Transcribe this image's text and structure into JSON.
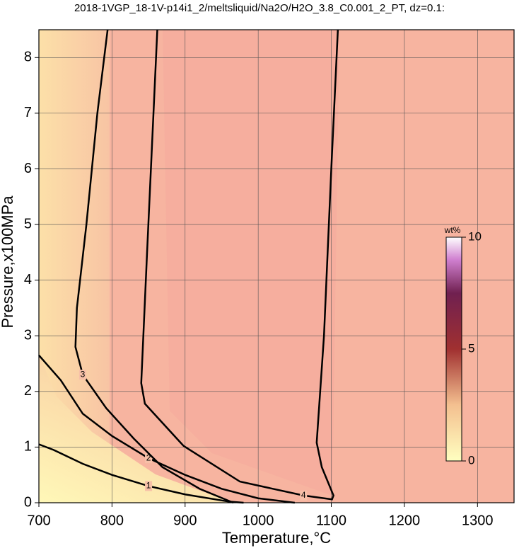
{
  "chart_data": {
    "type": "contour",
    "title": "2018-1VGP_18-1V-p14i1_2/meltsliquid/Na2O/H2O_3.8_C0.001_2_PT, dz=0.1:",
    "x_label": "Temperature,°C",
    "y_label": "Pressure,x100MPa",
    "xlim": [
      700,
      1350
    ],
    "ylim": [
      0,
      8.5
    ],
    "xticks": [
      700,
      800,
      900,
      1000,
      1100,
      1200,
      1300
    ],
    "yticks": [
      0,
      1,
      2,
      3,
      4,
      5,
      6,
      7,
      8
    ],
    "grid": true,
    "colorbar": {
      "label": "wt%",
      "lim": [
        0,
        10
      ],
      "ticks": [
        0,
        5,
        10
      ]
    },
    "contours": [
      {
        "level": 1,
        "x": [
          700,
          720,
          760,
          800,
          850,
          900,
          960,
          980
        ],
        "y": [
          1.05,
          0.95,
          0.7,
          0.5,
          0.3,
          0.15,
          0.02,
          0
        ]
      },
      {
        "level": 2,
        "x": [
          700,
          730,
          760,
          800,
          850,
          900,
          950,
          1000,
          1050
        ],
        "y": [
          2.65,
          2.2,
          1.6,
          1.2,
          0.8,
          0.5,
          0.25,
          0.08,
          0
        ]
      },
      {
        "level": 3,
        "x": [
          794,
          780,
          765,
          752,
          750,
          760,
          792,
          830,
          869,
          920,
          966
        ],
        "y": [
          8.5,
          7,
          5,
          3.5,
          2.8,
          2.3,
          1.7,
          1.15,
          0.64,
          0.25,
          0
        ]
      },
      {
        "level": 4,
        "x": [
          862,
          855,
          848,
          840,
          845,
          898,
          975,
          1062,
          1101,
          1103,
          1087,
          1080,
          1090,
          1100,
          1109
        ],
        "y": [
          8.5,
          6.5,
          4.5,
          2.15,
          1.78,
          1.02,
          0.38,
          0.13,
          0.06,
          0.13,
          0.64,
          1.08,
          3,
          6,
          8.5
        ]
      }
    ]
  }
}
